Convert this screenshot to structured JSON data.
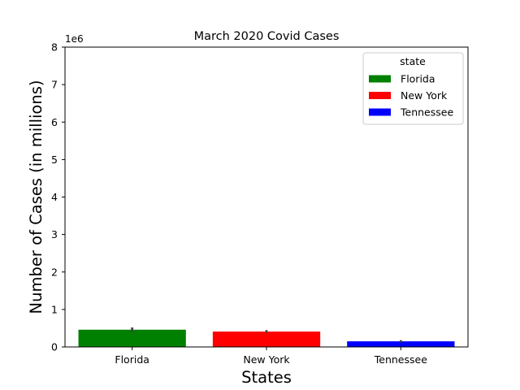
{
  "chart_data": {
    "type": "bar",
    "title": "March 2020 Covid Cases",
    "xlabel": "States",
    "ylabel": "Number of Cases (in millions)",
    "y_offset_label": "1e6",
    "ylim": [
      0,
      8
    ],
    "yticks": [
      "0",
      "1",
      "2",
      "3",
      "4",
      "5",
      "6",
      "7",
      "8"
    ],
    "categories": [
      "Florida",
      "New York",
      "Tennessee"
    ],
    "values": [
      0.46,
      0.41,
      0.15
    ],
    "error_bars": [
      [
        0.4,
        0.52
      ],
      [
        0.38,
        0.45
      ],
      [
        0.12,
        0.18
      ]
    ],
    "colors": [
      "#008000",
      "#ff0000",
      "#0000ff"
    ],
    "grid": false,
    "legend": {
      "title": "state",
      "placement": "top-right",
      "entries": [
        "Florida",
        "New York",
        "Tennessee"
      ]
    }
  }
}
